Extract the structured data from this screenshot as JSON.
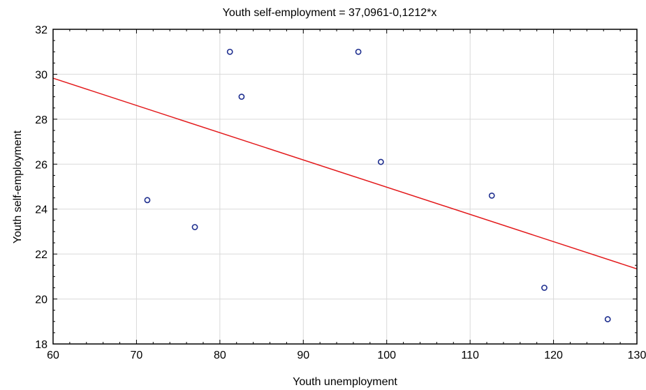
{
  "chart_data": {
    "type": "scatter",
    "title": "Youth self-employment = 37,0961-0,1212*x",
    "xlabel": "Youth unemployment",
    "ylabel": "Youth self-employment",
    "xlim": [
      60,
      130
    ],
    "ylim": [
      18,
      32
    ],
    "xticks": [
      60,
      70,
      80,
      90,
      100,
      110,
      120,
      130
    ],
    "yticks": [
      18,
      20,
      22,
      24,
      26,
      28,
      30,
      32
    ],
    "xtick_labels": [
      "60",
      "70",
      "80",
      "90",
      "100",
      "110",
      "120",
      "130"
    ],
    "ytick_labels": [
      "18",
      "20",
      "22",
      "24",
      "26",
      "28",
      "30",
      "32"
    ],
    "grid": true,
    "points": [
      {
        "x": 71.3,
        "y": 24.4
      },
      {
        "x": 77.0,
        "y": 23.2
      },
      {
        "x": 81.2,
        "y": 31.0
      },
      {
        "x": 82.6,
        "y": 29.0
      },
      {
        "x": 96.6,
        "y": 31.0
      },
      {
        "x": 99.3,
        "y": 26.1
      },
      {
        "x": 112.6,
        "y": 24.6
      },
      {
        "x": 118.9,
        "y": 20.5
      },
      {
        "x": 126.5,
        "y": 19.1
      }
    ],
    "fit_line": {
      "intercept": 37.0961,
      "slope": -0.1212
    },
    "colors": {
      "points": "#1f2f8f",
      "fit_line": "#e31a1c",
      "grid": "#d9d9d9",
      "axis": "#000000"
    }
  }
}
